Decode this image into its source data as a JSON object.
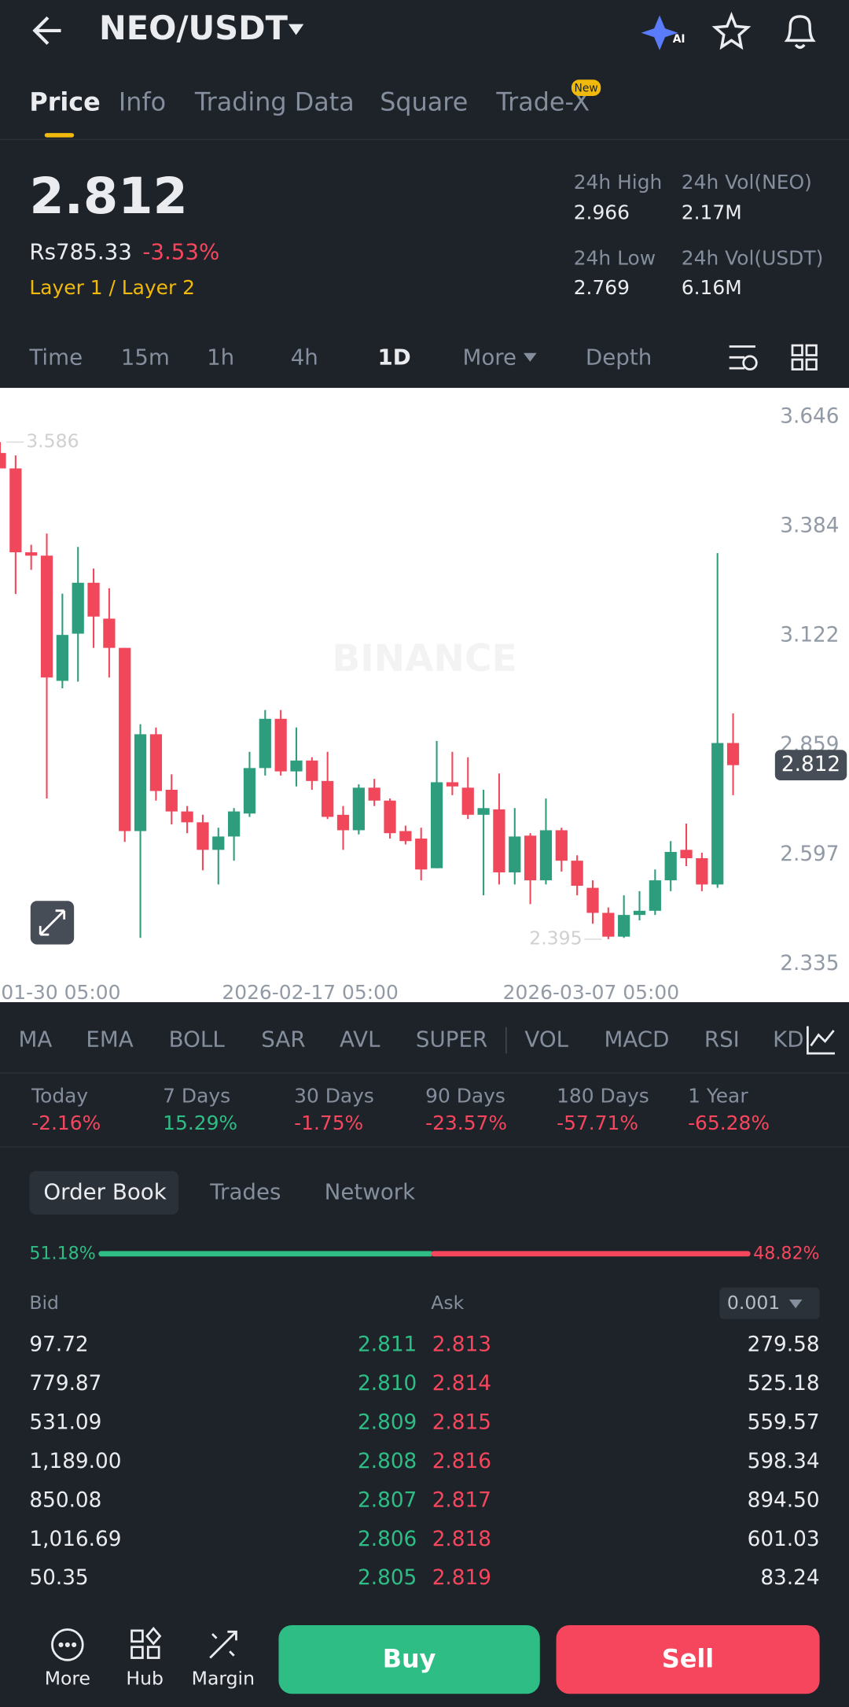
{
  "header": {
    "title": "NEO/USDT",
    "ai_badge": "AI"
  },
  "tabs": [
    "Price",
    "Info",
    "Trading Data",
    "Square",
    "Trade-X"
  ],
  "new_badge": "New",
  "ticker": {
    "price": "2.812",
    "fiat": "Rs785.33",
    "change": "-3.53%",
    "tag": "Layer 1 / Layer 2",
    "stats": [
      {
        "label": "24h High",
        "value": "2.966"
      },
      {
        "label": "24h Vol(NEO)",
        "value": "2.17M"
      },
      {
        "label": "24h Low",
        "value": "2.769"
      },
      {
        "label": "24h Vol(USDT)",
        "value": "6.16M"
      }
    ]
  },
  "intervals": [
    "Time",
    "15m",
    "1h",
    "4h",
    "1D",
    "More",
    "Depth"
  ],
  "chart_data": {
    "type": "candlestick",
    "watermark": "BINANCE",
    "up_color": "#2e9d7e",
    "down_color": "#f0475b",
    "open": [
      3.56,
      3.523,
      3.322,
      3.314,
      3.014,
      3.127,
      3.249,
      3.163,
      3.093,
      2.654,
      2.886,
      2.753,
      2.701,
      2.675,
      2.609,
      2.641,
      2.696,
      2.805,
      2.923,
      2.797,
      2.823,
      2.774,
      2.693,
      2.656,
      2.758,
      2.727,
      2.654,
      2.636,
      2.565,
      2.771,
      2.758,
      2.693,
      2.706,
      2.555,
      2.643,
      2.536,
      2.656,
      2.583,
      2.518,
      2.458,
      2.401,
      2.453,
      2.463,
      2.536,
      2.609,
      2.589,
      2.526,
      2.865
    ],
    "high": [
      3.586,
      3.554,
      3.34,
      3.367,
      3.223,
      3.335,
      3.283,
      3.236,
      3.093,
      2.91,
      2.902,
      2.79,
      2.714,
      2.693,
      2.662,
      2.709,
      2.844,
      2.944,
      2.944,
      2.902,
      2.831,
      2.844,
      2.714,
      2.766,
      2.779,
      2.732,
      2.667,
      2.662,
      2.87,
      2.844,
      2.831,
      2.753,
      2.792,
      2.709,
      2.649,
      2.732,
      2.662,
      2.596,
      2.536,
      2.471,
      2.5,
      2.51,
      2.562,
      2.63,
      2.672,
      2.602,
      3.32,
      2.936
    ],
    "low": [
      3.523,
      3.222,
      3.28,
      2.732,
      2.996,
      3.012,
      3.093,
      3.022,
      2.628,
      2.398,
      2.727,
      2.67,
      2.649,
      2.56,
      2.526,
      2.583,
      2.688,
      2.787,
      2.787,
      2.761,
      2.753,
      2.683,
      2.609,
      2.646,
      2.714,
      2.636,
      2.622,
      2.536,
      2.565,
      2.74,
      2.683,
      2.5,
      2.526,
      2.526,
      2.479,
      2.526,
      2.557,
      2.5,
      2.432,
      2.395,
      2.398,
      2.44,
      2.453,
      2.51,
      2.57,
      2.51,
      2.518,
      2.74
    ],
    "close": [
      3.523,
      3.322,
      3.314,
      3.022,
      3.124,
      3.249,
      3.168,
      3.093,
      2.654,
      2.886,
      2.75,
      2.701,
      2.675,
      2.609,
      2.641,
      2.701,
      2.805,
      2.923,
      2.797,
      2.823,
      2.774,
      2.688,
      2.656,
      2.758,
      2.727,
      2.649,
      2.63,
      2.562,
      2.771,
      2.761,
      2.693,
      2.709,
      2.555,
      2.641,
      2.536,
      2.656,
      2.583,
      2.523,
      2.458,
      2.401,
      2.453,
      2.463,
      2.536,
      2.604,
      2.589,
      2.526,
      2.865,
      2.812
    ],
    "ylim": [
      2.244,
      3.716
    ],
    "yticks": [
      3.646,
      3.384,
      3.122,
      2.859,
      2.597,
      2.335
    ],
    "grid": false,
    "x_labels": [
      "01-30 05:00",
      "2026-02-17 05:00",
      "2026-03-07 05:00"
    ],
    "max_label": 3.586,
    "min_label": 2.395,
    "last_price": 2.812
  },
  "indicators": [
    "MA",
    "EMA",
    "BOLL",
    "SAR",
    "AVL",
    "SUPER",
    "VOL",
    "MACD",
    "RSI",
    "KD"
  ],
  "performance": [
    {
      "label": "Today",
      "value": "-2.16%"
    },
    {
      "label": "7 Days",
      "value": "15.29%"
    },
    {
      "label": "30 Days",
      "value": "-1.75%"
    },
    {
      "label": "90 Days",
      "value": "-23.57%"
    },
    {
      "label": "180 Days",
      "value": "-57.71%"
    },
    {
      "label": "1 Year",
      "value": "-65.28%"
    }
  ],
  "orderbook": {
    "tabs": [
      "Order Book",
      "Trades",
      "Network"
    ],
    "bid_share": {
      "value": 51.18,
      "label": "51.18%"
    },
    "ask_share": {
      "value": 48.82,
      "label": "48.82%"
    },
    "bid_label": "Bid",
    "ask_label": "Ask",
    "precision": "0.001",
    "rows": [
      [
        "97.72",
        "2.811",
        "2.813",
        "279.58"
      ],
      [
        "779.87",
        "2.810",
        "2.814",
        "525.18"
      ],
      [
        "531.09",
        "2.809",
        "2.815",
        "559.57"
      ],
      [
        "1,189.00",
        "2.808",
        "2.816",
        "598.34"
      ],
      [
        "850.08",
        "2.807",
        "2.817",
        "894.50"
      ],
      [
        "1,016.69",
        "2.806",
        "2.818",
        "601.03"
      ],
      [
        "50.35",
        "2.805",
        "2.819",
        "83.24"
      ]
    ]
  },
  "footer": {
    "items": [
      "More",
      "Hub",
      "Margin"
    ],
    "buy": "Buy",
    "sell": "Sell"
  }
}
